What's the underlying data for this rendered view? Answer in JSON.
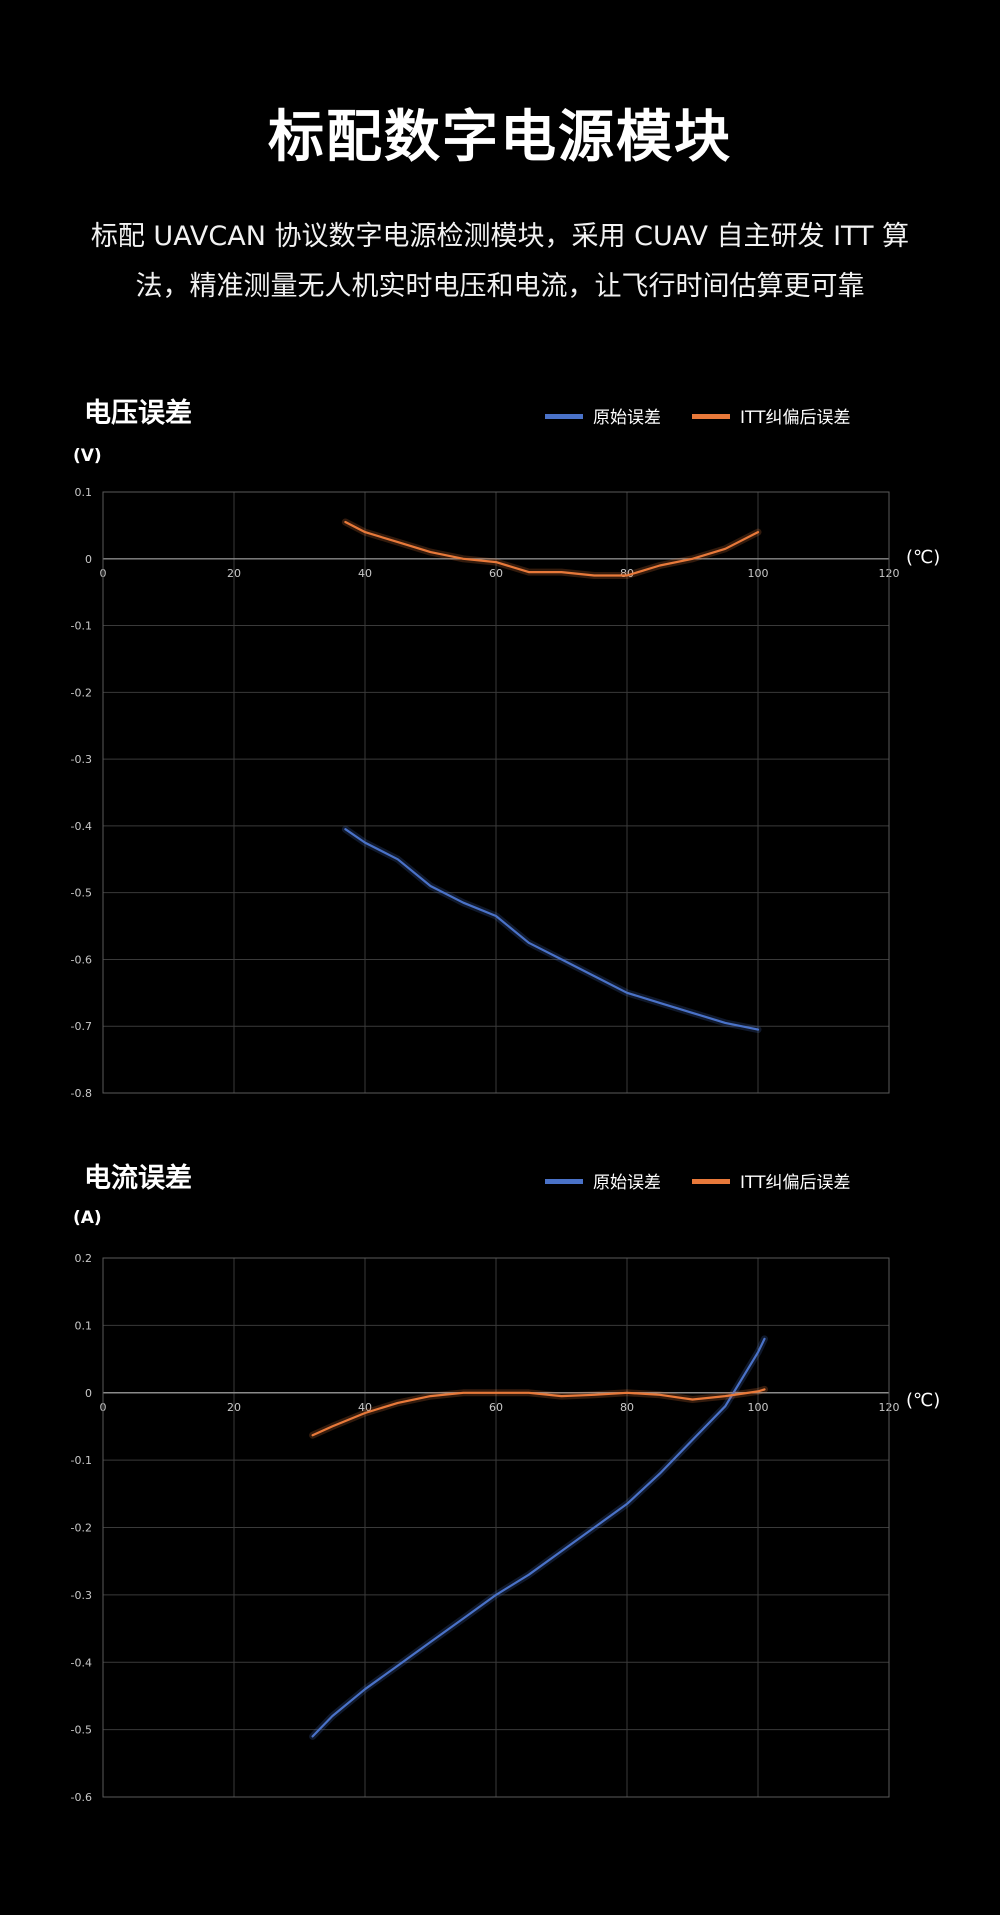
{
  "page": {
    "title": "标配数字电源模块",
    "subtitle": "标配 UAVCAN 协议数字电源检测模块，采用 CUAV 自主研发 ITT 算法，精准测量无人机实时电压和电流，让飞行时间估算更可靠"
  },
  "colors": {
    "background": "#000000",
    "raw_series": "#4a72c8",
    "corrected_series": "#e8793a",
    "grid": "#3a3a3a"
  },
  "chart_data": [
    {
      "type": "line",
      "title": "电压误差",
      "ylabel": "(V)",
      "xlabel": "(℃)",
      "xlim": [
        0,
        120
      ],
      "ylim": [
        -0.8,
        0.1
      ],
      "xticks": [
        "0",
        "20",
        "40",
        "60",
        "80",
        "100",
        "120"
      ],
      "yticks": [
        "0.1",
        "0",
        "-0.1",
        "-0.2",
        "-0.3",
        "-0.4",
        "-0.5",
        "-0.6",
        "-0.7",
        "-0.8"
      ],
      "grid": true,
      "legend_position": "top-right",
      "series": [
        {
          "name": "原始误差",
          "color": "#4a72c8",
          "x": [
            37,
            40,
            45,
            50,
            55,
            60,
            65,
            70,
            75,
            80,
            85,
            90,
            95,
            100
          ],
          "y": [
            -0.405,
            -0.425,
            -0.45,
            -0.49,
            -0.515,
            -0.535,
            -0.575,
            -0.6,
            -0.625,
            -0.65,
            -0.665,
            -0.68,
            -0.695,
            -0.705
          ]
        },
        {
          "name": "ITT纠偏后误差",
          "color": "#e8793a",
          "x": [
            37,
            40,
            45,
            50,
            55,
            60,
            65,
            70,
            75,
            80,
            85,
            90,
            95,
            100
          ],
          "y": [
            0.055,
            0.04,
            0.025,
            0.01,
            0.0,
            -0.005,
            -0.02,
            -0.02,
            -0.025,
            -0.025,
            -0.01,
            0.0,
            0.015,
            0.04
          ]
        }
      ]
    },
    {
      "type": "line",
      "title": "电流误差",
      "ylabel": "(A)",
      "xlabel": "(℃)",
      "xlim": [
        0,
        120
      ],
      "ylim": [
        -0.6,
        0.2
      ],
      "xticks": [
        "0",
        "20",
        "40",
        "60",
        "80",
        "100",
        "120"
      ],
      "yticks": [
        "0.2",
        "0.1",
        "0",
        "-0.1",
        "-0.2",
        "-0.3",
        "-0.4",
        "-0.5",
        "-0.6"
      ],
      "grid": true,
      "legend_position": "top-right",
      "series": [
        {
          "name": "原始误差",
          "color": "#4a72c8",
          "x": [
            32,
            35,
            40,
            45,
            50,
            55,
            60,
            65,
            70,
            75,
            80,
            85,
            90,
            95,
            100,
            101
          ],
          "y": [
            -0.51,
            -0.48,
            -0.44,
            -0.405,
            -0.37,
            -0.335,
            -0.3,
            -0.27,
            -0.235,
            -0.2,
            -0.165,
            -0.12,
            -0.07,
            -0.02,
            0.06,
            0.08
          ]
        },
        {
          "name": "ITT纠偏后误差",
          "color": "#e8793a",
          "x": [
            32,
            35,
            40,
            45,
            50,
            55,
            60,
            65,
            70,
            75,
            80,
            85,
            90,
            95,
            100,
            101
          ],
          "y": [
            -0.063,
            -0.05,
            -0.03,
            -0.015,
            -0.005,
            0.0,
            0.0,
            0.0,
            -0.005,
            -0.003,
            0.0,
            -0.003,
            -0.01,
            -0.005,
            0.002,
            0.005
          ]
        }
      ]
    }
  ]
}
